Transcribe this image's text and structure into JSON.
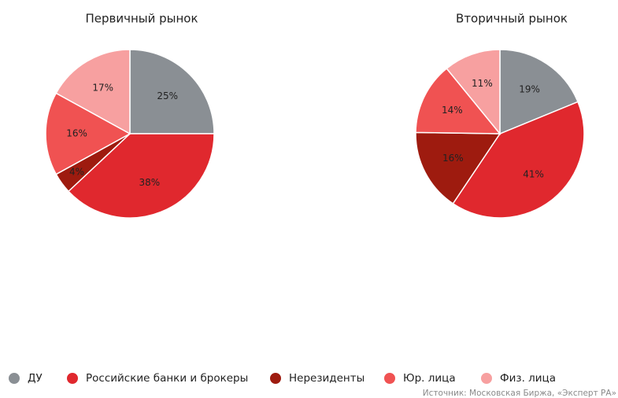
{
  "chart_data": [
    {
      "type": "pie",
      "title": "Первичный рынок",
      "categories": [
        "ДУ",
        "Российские банки и брокеры",
        "Нерезиденты",
        "Юр. лица",
        "Физ. лица"
      ],
      "values": [
        25,
        38,
        4,
        16,
        17
      ],
      "value_labels": [
        "25%",
        "38%",
        "4%",
        "16%",
        "17%"
      ],
      "colors": [
        "#8a8f94",
        "#e0282e",
        "#9e1b0f",
        "#f05252",
        "#f7a0a0"
      ]
    },
    {
      "type": "pie",
      "title": "Вторичный рынок",
      "categories": [
        "ДУ",
        "Российские банки и брокеры",
        "Нерезиденты",
        "Юр. лица",
        "Физ. лица"
      ],
      "values": [
        19,
        41,
        16,
        14,
        11
      ],
      "value_labels": [
        "19%",
        "41%",
        "16%",
        "14%",
        "11%"
      ],
      "colors": [
        "#8a8f94",
        "#e0282e",
        "#9e1b0f",
        "#f05252",
        "#f7a0a0"
      ]
    }
  ],
  "source": "Источник: Московская Биржа, «Эксперт РА»"
}
